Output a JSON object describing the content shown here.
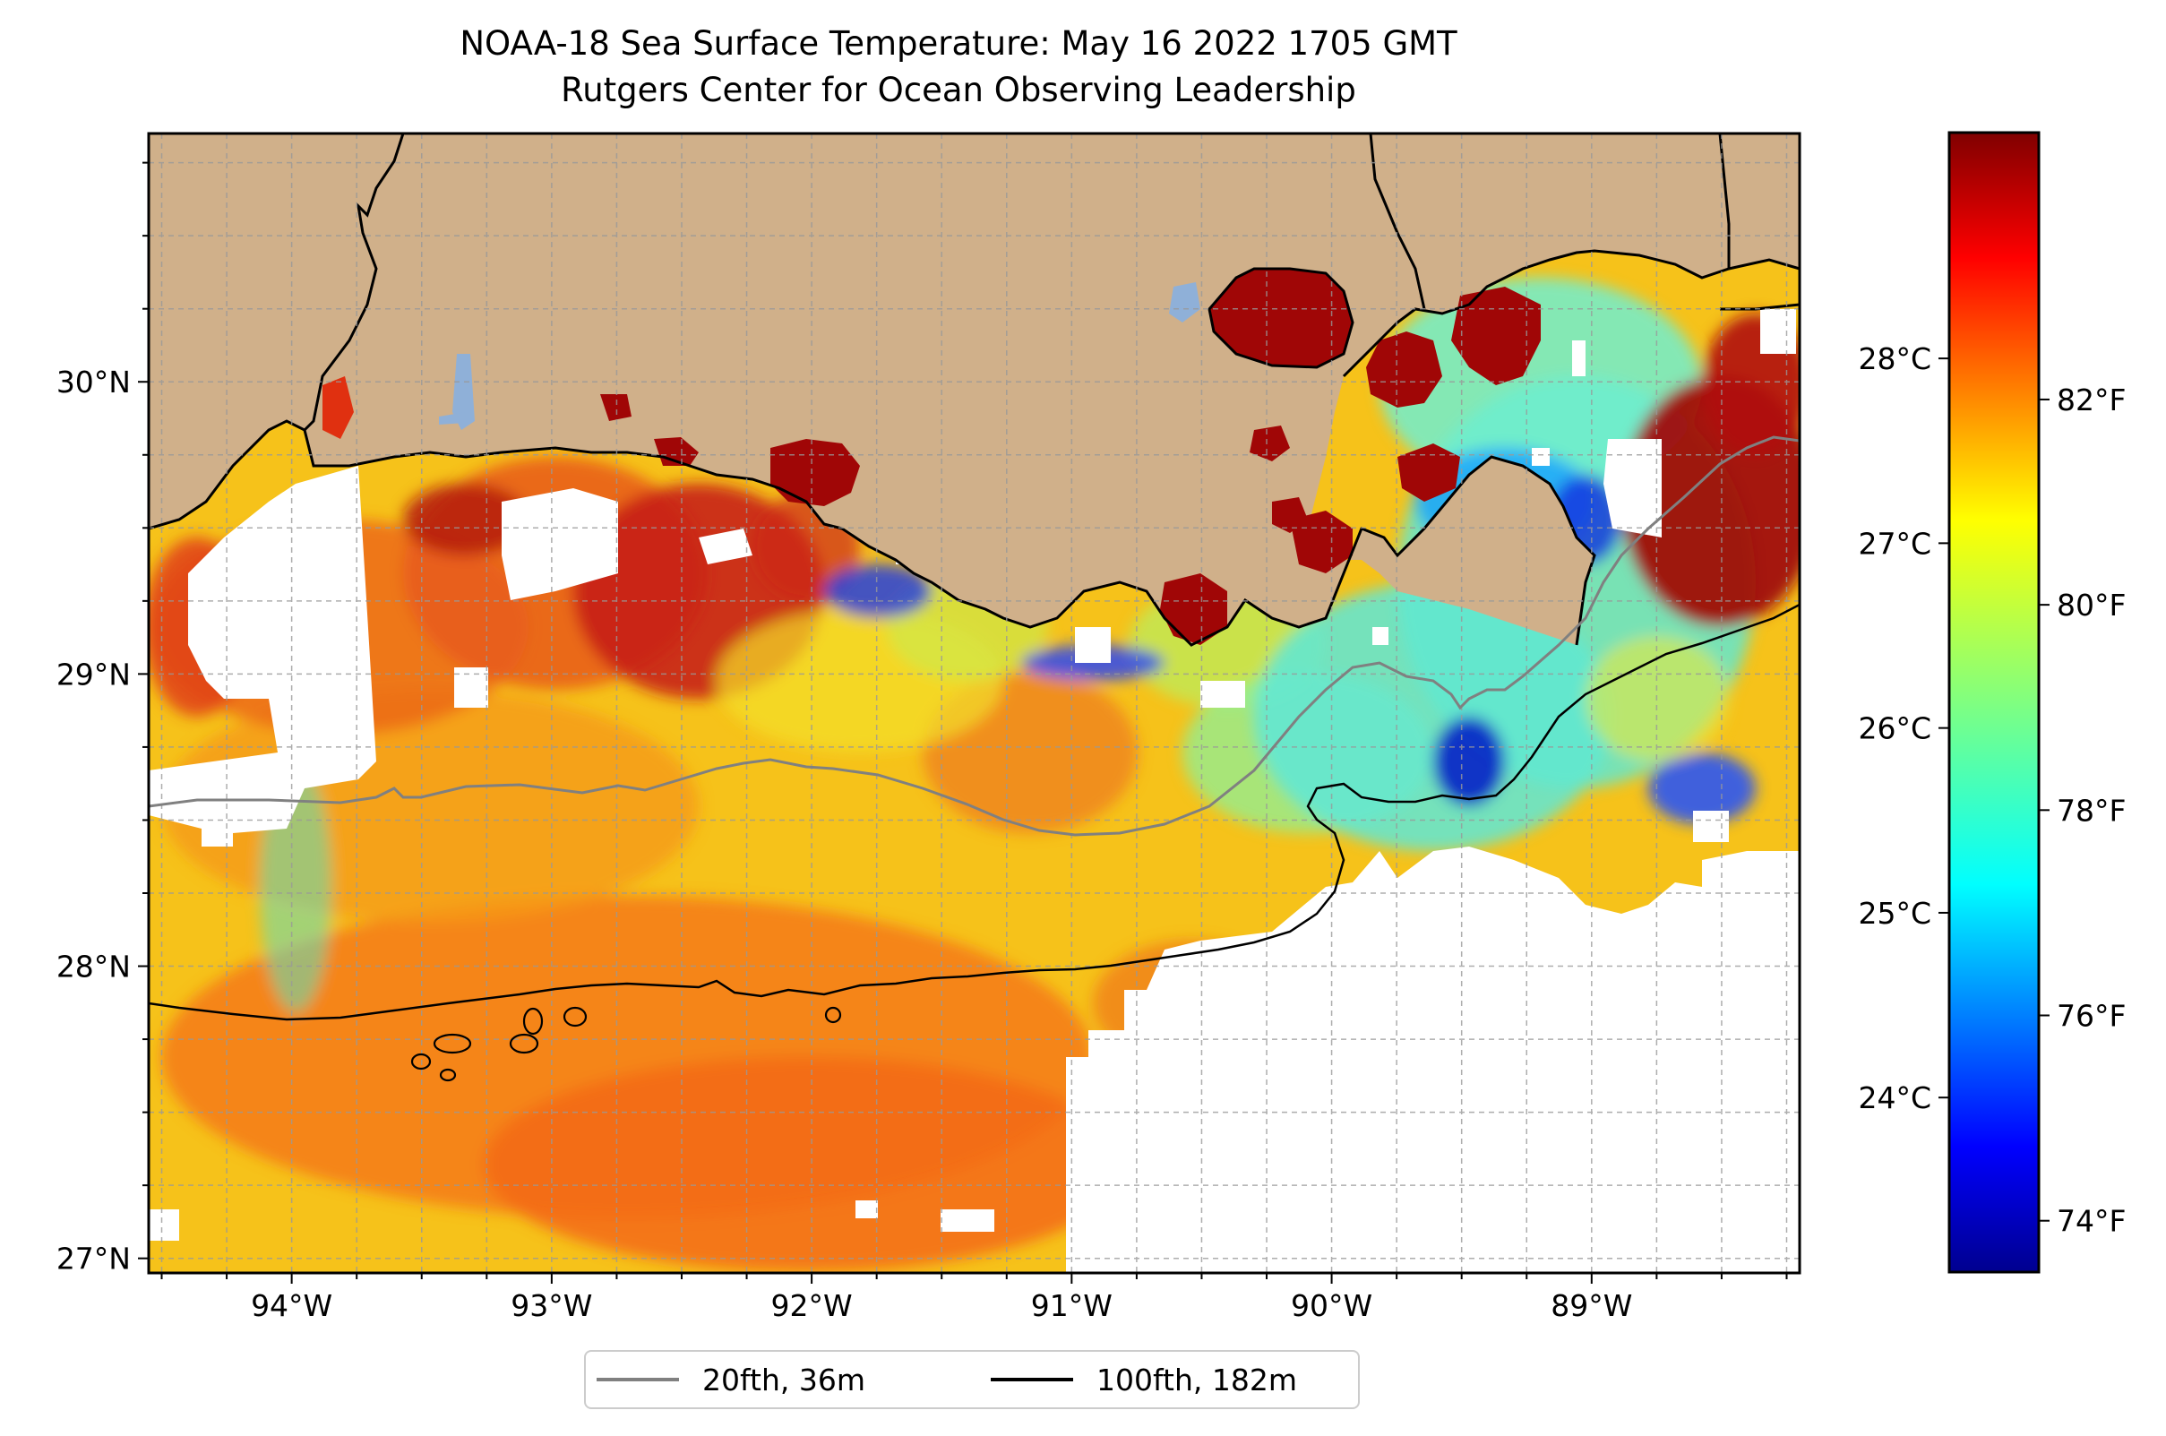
{
  "title": {
    "line1": "NOAA-18 Sea Surface Temperature: May 16 2022 1705 GMT",
    "line2": "Rutgers Center for Ocean Observing Leadership"
  },
  "map": {
    "lon_range": [
      -94.55,
      -88.2
    ],
    "lat_range": [
      26.95,
      30.85
    ],
    "lon_ticks": [
      {
        "value": -94,
        "label": "94°W"
      },
      {
        "value": -93,
        "label": "93°W"
      },
      {
        "value": -92,
        "label": "92°W"
      },
      {
        "value": -91,
        "label": "91°W"
      },
      {
        "value": -90,
        "label": "90°W"
      },
      {
        "value": -89,
        "label": "89°W"
      }
    ],
    "lat_ticks": [
      {
        "value": 30,
        "label": "30°N"
      },
      {
        "value": 29,
        "label": "29°N"
      },
      {
        "value": 28,
        "label": "28°N"
      },
      {
        "value": 27,
        "label": "27°N"
      }
    ],
    "gridlines": true,
    "land_color": "#d0b08a",
    "cloud_color": "#ffffff",
    "colormap": "jet"
  },
  "colorbar": {
    "range_f": [
      73.5,
      84.6
    ],
    "fahrenheit_ticks": [
      {
        "value": 74,
        "label": "74°F"
      },
      {
        "value": 76,
        "label": "76°F"
      },
      {
        "value": 78,
        "label": "78°F"
      },
      {
        "value": 80,
        "label": "80°F"
      },
      {
        "value": 82,
        "label": "82°F"
      }
    ],
    "celsius_ticks": [
      {
        "value": 24,
        "label": "24°C"
      },
      {
        "value": 25,
        "label": "25°C"
      },
      {
        "value": 26,
        "label": "26°C"
      },
      {
        "value": 27,
        "label": "27°C"
      },
      {
        "value": 28,
        "label": "28°C"
      }
    ]
  },
  "legend": {
    "placement": "bottom-center",
    "items": [
      {
        "label": "20fth, 36m",
        "color": "#808080"
      },
      {
        "label": "100fth, 182m",
        "color": "#000000"
      }
    ]
  }
}
